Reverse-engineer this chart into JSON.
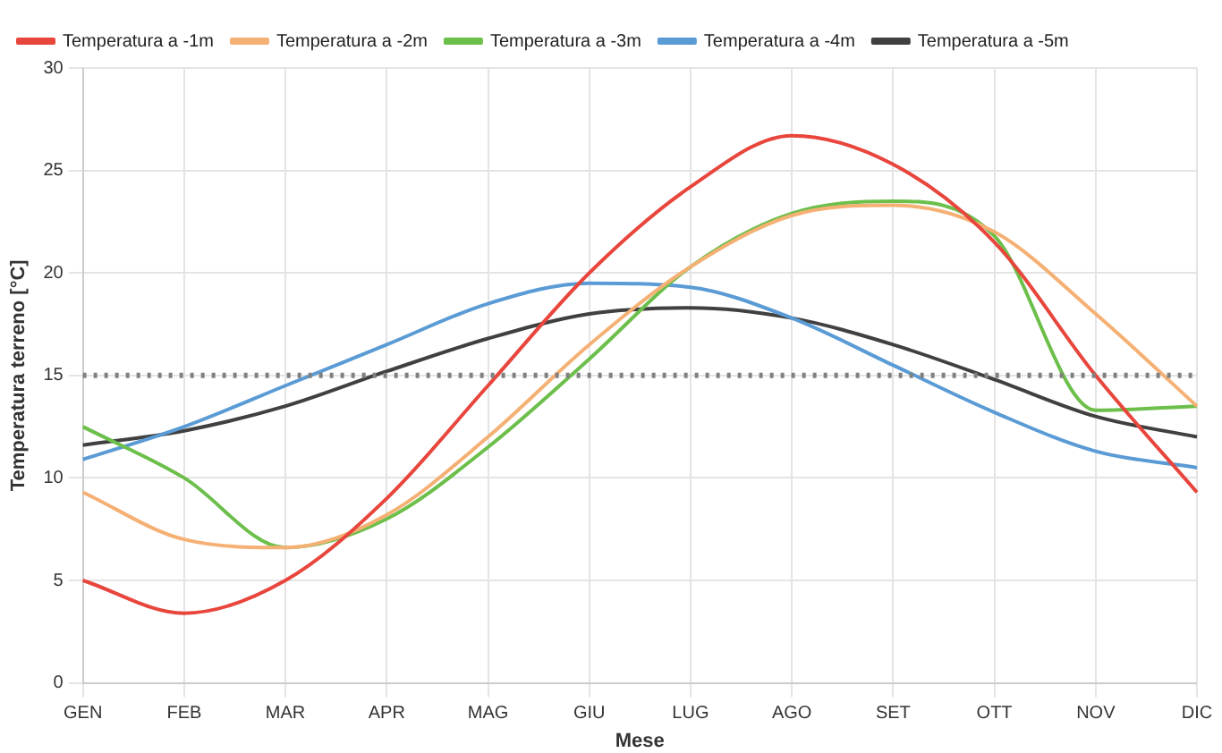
{
  "chart_data": {
    "type": "line",
    "xlabel": "Mese",
    "ylabel": "Temperatura terreno [°C]",
    "categories": [
      "GEN",
      "FEB",
      "MAR",
      "APR",
      "MAG",
      "GIU",
      "LUG",
      "AGO",
      "SET",
      "OTT",
      "NOV",
      "DIC"
    ],
    "series": [
      {
        "name": "Temperatura a -1m",
        "color": "#e8463c",
        "values": [
          5.0,
          3.4,
          5.0,
          9.0,
          14.5,
          20.0,
          24.2,
          26.7,
          25.3,
          21.5,
          15.0,
          9.3
        ]
      },
      {
        "name": "Temperatura a -2m",
        "color": "#f5b074",
        "values": [
          9.3,
          7.0,
          6.6,
          8.2,
          12.0,
          16.5,
          20.3,
          22.8,
          23.3,
          22.0,
          18.0,
          13.5
        ]
      },
      {
        "name": "Temperatura a -3m",
        "color": "#6cbf4a",
        "values": [
          12.5,
          10.0,
          6.6,
          8.0,
          11.5,
          15.8,
          20.3,
          22.9,
          23.5,
          21.8,
          13.3,
          13.5
        ]
      },
      {
        "name": "Temperatura a -4m",
        "color": "#5b9bd5",
        "values": [
          10.9,
          12.5,
          14.5,
          16.5,
          18.5,
          19.5,
          19.3,
          17.8,
          15.5,
          13.2,
          11.3,
          10.5
        ]
      },
      {
        "name": "Temperatura a -5m",
        "color": "#404040",
        "values": [
          11.6,
          12.3,
          13.5,
          15.2,
          16.8,
          18.0,
          18.3,
          17.8,
          16.5,
          14.8,
          13.0,
          12.0
        ]
      }
    ],
    "ref_lines": [
      {
        "axis": "y",
        "value": 15,
        "color": "#808080",
        "line_style": "dotted"
      }
    ],
    "ylim": [
      0,
      30
    ],
    "yticks": [
      0,
      5,
      10,
      15,
      20,
      25,
      30
    ],
    "grid": true,
    "legend": "top left",
    "marker": "none",
    "line_style": "solid"
  }
}
